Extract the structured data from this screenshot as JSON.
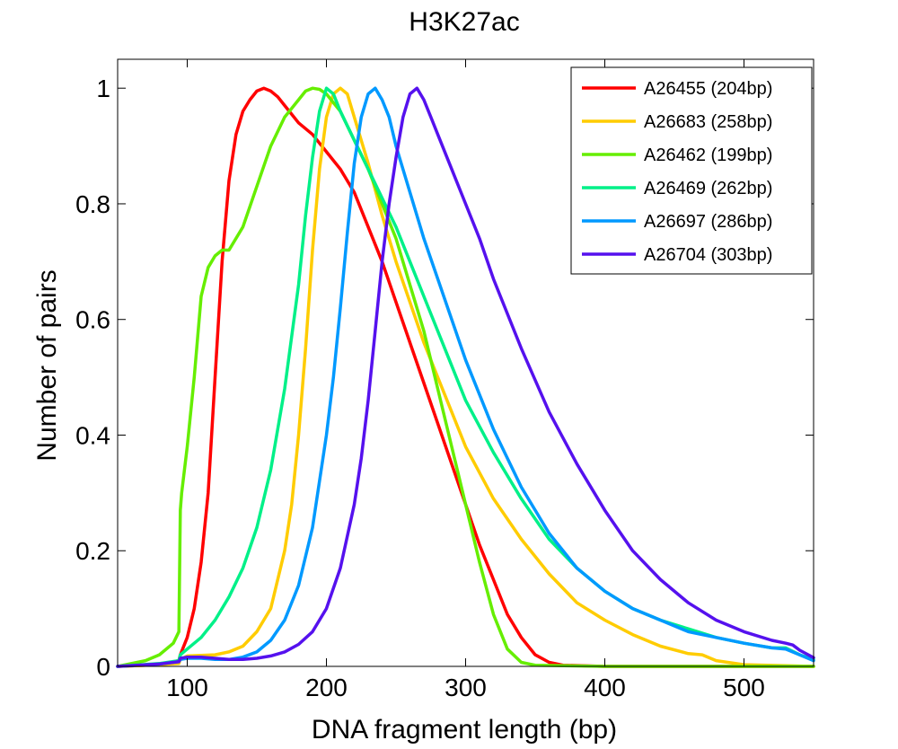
{
  "chart_data": {
    "type": "line",
    "title": "H3K27ac",
    "xlabel": "DNA fragment length (bp)",
    "ylabel": "Number of pairs",
    "xlim": [
      50,
      550
    ],
    "ylim": [
      0,
      1.05
    ],
    "xticks": [
      100,
      200,
      300,
      400,
      500
    ],
    "yticks": [
      0,
      0.2,
      0.4,
      0.6,
      0.8,
      1
    ],
    "ytick_labels": [
      "0",
      "0.2",
      "0.4",
      "0.6",
      "0.8",
      "1"
    ],
    "grid": false,
    "legend_position": "top-right",
    "series": [
      {
        "name": "A26455 (204bp)",
        "color": "#ff0000",
        "x": [
          50,
          80,
          94,
          95,
          100,
          105,
          110,
          115,
          120,
          125,
          130,
          135,
          140,
          145,
          150,
          155,
          160,
          165,
          170,
          180,
          190,
          200,
          210,
          220,
          230,
          240,
          250,
          260,
          270,
          280,
          290,
          300,
          310,
          320,
          330,
          340,
          350,
          360,
          370,
          400,
          550
        ],
        "y": [
          0,
          0.003,
          0.01,
          0.02,
          0.05,
          0.1,
          0.18,
          0.3,
          0.5,
          0.7,
          0.84,
          0.92,
          0.96,
          0.98,
          0.995,
          1.0,
          0.995,
          0.985,
          0.97,
          0.94,
          0.92,
          0.89,
          0.86,
          0.82,
          0.76,
          0.7,
          0.63,
          0.56,
          0.49,
          0.42,
          0.35,
          0.28,
          0.21,
          0.15,
          0.09,
          0.05,
          0.02,
          0.007,
          0.002,
          0.0,
          0.0
        ]
      },
      {
        "name": "A26683 (258bp)",
        "color": "#ffcc00",
        "x": [
          50,
          80,
          94,
          95,
          100,
          120,
          130,
          140,
          150,
          160,
          170,
          175,
          180,
          185,
          190,
          195,
          200,
          205,
          210,
          215,
          220,
          230,
          240,
          250,
          260,
          270,
          280,
          290,
          300,
          320,
          340,
          360,
          380,
          400,
          420,
          440,
          460,
          470,
          480,
          500,
          550
        ],
        "y": [
          0,
          0.003,
          0.005,
          0.012,
          0.018,
          0.02,
          0.025,
          0.035,
          0.06,
          0.1,
          0.2,
          0.28,
          0.4,
          0.55,
          0.72,
          0.86,
          0.95,
          0.99,
          1.0,
          0.99,
          0.95,
          0.87,
          0.78,
          0.7,
          0.63,
          0.56,
          0.5,
          0.44,
          0.38,
          0.29,
          0.22,
          0.16,
          0.11,
          0.08,
          0.055,
          0.035,
          0.022,
          0.02,
          0.01,
          0.003,
          0.0
        ]
      },
      {
        "name": "A26462 (199bp)",
        "color": "#66ee00",
        "x": [
          50,
          70,
          80,
          90,
          94,
          95,
          96,
          100,
          105,
          110,
          115,
          120,
          125,
          130,
          140,
          150,
          160,
          170,
          180,
          185,
          190,
          195,
          200,
          210,
          220,
          230,
          240,
          250,
          260,
          270,
          280,
          290,
          300,
          310,
          320,
          330,
          340,
          350,
          400,
          550
        ],
        "y": [
          0,
          0.01,
          0.02,
          0.04,
          0.06,
          0.27,
          0.3,
          0.38,
          0.5,
          0.64,
          0.69,
          0.71,
          0.72,
          0.72,
          0.76,
          0.83,
          0.9,
          0.95,
          0.98,
          0.995,
          1.0,
          0.998,
          0.99,
          0.96,
          0.91,
          0.86,
          0.8,
          0.74,
          0.66,
          0.58,
          0.48,
          0.38,
          0.28,
          0.18,
          0.09,
          0.03,
          0.007,
          0.002,
          0.0,
          0.0
        ]
      },
      {
        "name": "A26469 (262bp)",
        "color": "#00f088",
        "x": [
          50,
          80,
          94,
          95,
          100,
          110,
          120,
          130,
          140,
          150,
          160,
          170,
          180,
          185,
          190,
          195,
          200,
          205,
          210,
          220,
          230,
          240,
          250,
          260,
          270,
          280,
          290,
          300,
          320,
          340,
          360,
          380,
          400,
          420,
          440,
          460,
          480,
          500,
          520,
          530,
          540,
          550
        ],
        "y": [
          0,
          0.005,
          0.01,
          0.02,
          0.03,
          0.05,
          0.08,
          0.12,
          0.17,
          0.24,
          0.34,
          0.48,
          0.66,
          0.78,
          0.88,
          0.96,
          1.0,
          0.99,
          0.96,
          0.91,
          0.86,
          0.81,
          0.76,
          0.7,
          0.64,
          0.58,
          0.52,
          0.46,
          0.37,
          0.29,
          0.22,
          0.17,
          0.13,
          0.1,
          0.08,
          0.065,
          0.05,
          0.04,
          0.032,
          0.032,
          0.02,
          0.012
        ]
      },
      {
        "name": "A26697 (286bp)",
        "color": "#0099ff",
        "x": [
          50,
          80,
          94,
          95,
          100,
          110,
          120,
          130,
          140,
          150,
          160,
          170,
          180,
          190,
          200,
          205,
          210,
          215,
          220,
          225,
          230,
          235,
          240,
          245,
          250,
          260,
          270,
          280,
          290,
          300,
          320,
          340,
          360,
          380,
          400,
          420,
          440,
          460,
          480,
          500,
          520,
          530,
          540,
          550
        ],
        "y": [
          0,
          0.004,
          0.008,
          0.012,
          0.014,
          0.014,
          0.012,
          0.012,
          0.016,
          0.025,
          0.045,
          0.08,
          0.14,
          0.24,
          0.4,
          0.5,
          0.62,
          0.75,
          0.87,
          0.95,
          0.99,
          1.0,
          0.98,
          0.95,
          0.9,
          0.82,
          0.74,
          0.67,
          0.6,
          0.53,
          0.41,
          0.31,
          0.23,
          0.17,
          0.13,
          0.1,
          0.08,
          0.06,
          0.05,
          0.04,
          0.032,
          0.03,
          0.02,
          0.01
        ]
      },
      {
        "name": "A26704 (303bp)",
        "color": "#5511ee",
        "x": [
          50,
          80,
          94,
          95,
          100,
          110,
          120,
          130,
          140,
          150,
          160,
          170,
          180,
          190,
          200,
          210,
          220,
          225,
          230,
          235,
          240,
          245,
          250,
          255,
          260,
          265,
          270,
          275,
          280,
          290,
          300,
          310,
          320,
          340,
          360,
          380,
          400,
          420,
          440,
          460,
          480,
          500,
          520,
          530,
          535,
          540,
          550
        ],
        "y": [
          0,
          0.004,
          0.008,
          0.014,
          0.016,
          0.016,
          0.014,
          0.012,
          0.012,
          0.014,
          0.018,
          0.025,
          0.038,
          0.06,
          0.1,
          0.17,
          0.28,
          0.36,
          0.46,
          0.58,
          0.7,
          0.8,
          0.88,
          0.95,
          0.99,
          1.0,
          0.98,
          0.95,
          0.92,
          0.86,
          0.8,
          0.74,
          0.67,
          0.55,
          0.44,
          0.35,
          0.27,
          0.2,
          0.15,
          0.11,
          0.08,
          0.06,
          0.045,
          0.04,
          0.037,
          0.028,
          0.015
        ]
      }
    ]
  }
}
